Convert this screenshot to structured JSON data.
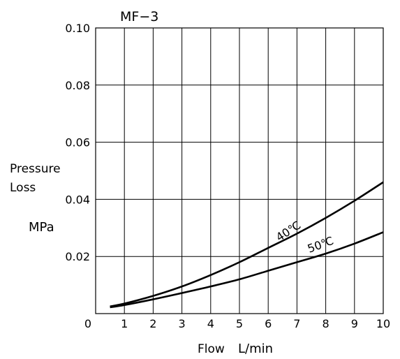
{
  "chart_data": {
    "type": "line",
    "title": "MF−3",
    "xlabel_name": "Flow",
    "xlabel_unit": "L/min",
    "ylabel_line1": "Pressure",
    "ylabel_line2": "Loss",
    "ylabel_unit": "MPa",
    "xlim": [
      0,
      10
    ],
    "ylim": [
      0,
      0.1
    ],
    "x_ticks": [
      "0",
      "1",
      "2",
      "3",
      "4",
      "5",
      "6",
      "7",
      "8",
      "9",
      "10"
    ],
    "y_ticks": [
      {
        "value": 0.02,
        "label": "0.02"
      },
      {
        "value": 0.04,
        "label": "0.04"
      },
      {
        "value": 0.06,
        "label": "0.06"
      },
      {
        "value": 0.08,
        "label": "0.08"
      },
      {
        "value": 0.1,
        "label": "0.10"
      }
    ],
    "grid": true,
    "series": [
      {
        "name": "40℃",
        "x": [
          0.5,
          1,
          2,
          3,
          4,
          5,
          6,
          7,
          8,
          9,
          10
        ],
        "y": [
          0.0025,
          0.0035,
          0.0062,
          0.0095,
          0.0135,
          0.018,
          0.023,
          0.028,
          0.0335,
          0.0395,
          0.046
        ]
      },
      {
        "name": "50℃",
        "x": [
          0.5,
          1,
          2,
          3,
          4,
          5,
          6,
          7,
          8,
          9,
          10
        ],
        "y": [
          0.0022,
          0.003,
          0.005,
          0.0072,
          0.0095,
          0.012,
          0.015,
          0.018,
          0.021,
          0.0245,
          0.0285
        ]
      }
    ]
  }
}
